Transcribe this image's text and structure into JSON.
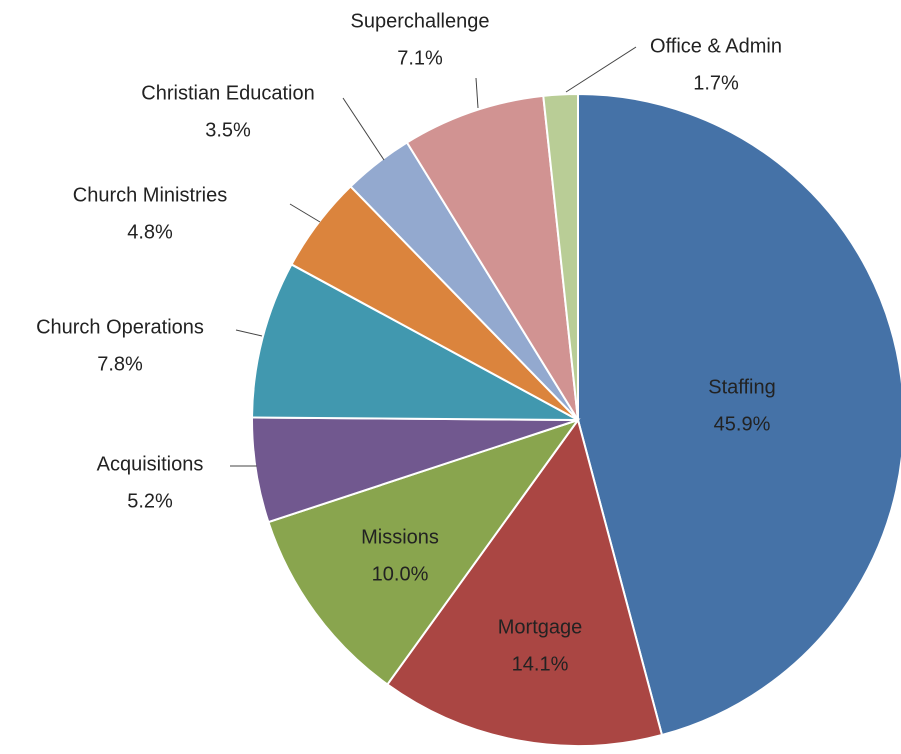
{
  "chart_data": {
    "type": "pie",
    "categories": [
      "Staffing",
      "Mortgage",
      "Missions",
      "Acquisitions",
      "Church Operations",
      "Church Ministries",
      "Christian Education",
      "Superchallenge",
      "Office & Admin"
    ],
    "values": [
      45.9,
      14.1,
      10.0,
      5.2,
      7.8,
      4.8,
      3.5,
      7.1,
      1.7
    ],
    "value_labels": [
      "45.9%",
      "14.1%",
      "10.0%",
      "5.2%",
      "7.8%",
      "4.8%",
      "3.5%",
      "7.1%",
      "1.7%"
    ],
    "colors": [
      "#4572a7",
      "#aa4643",
      "#89a54e",
      "#71588f",
      "#4198af",
      "#db843d",
      "#93a9cf",
      "#d19392",
      "#b9cd96"
    ]
  }
}
